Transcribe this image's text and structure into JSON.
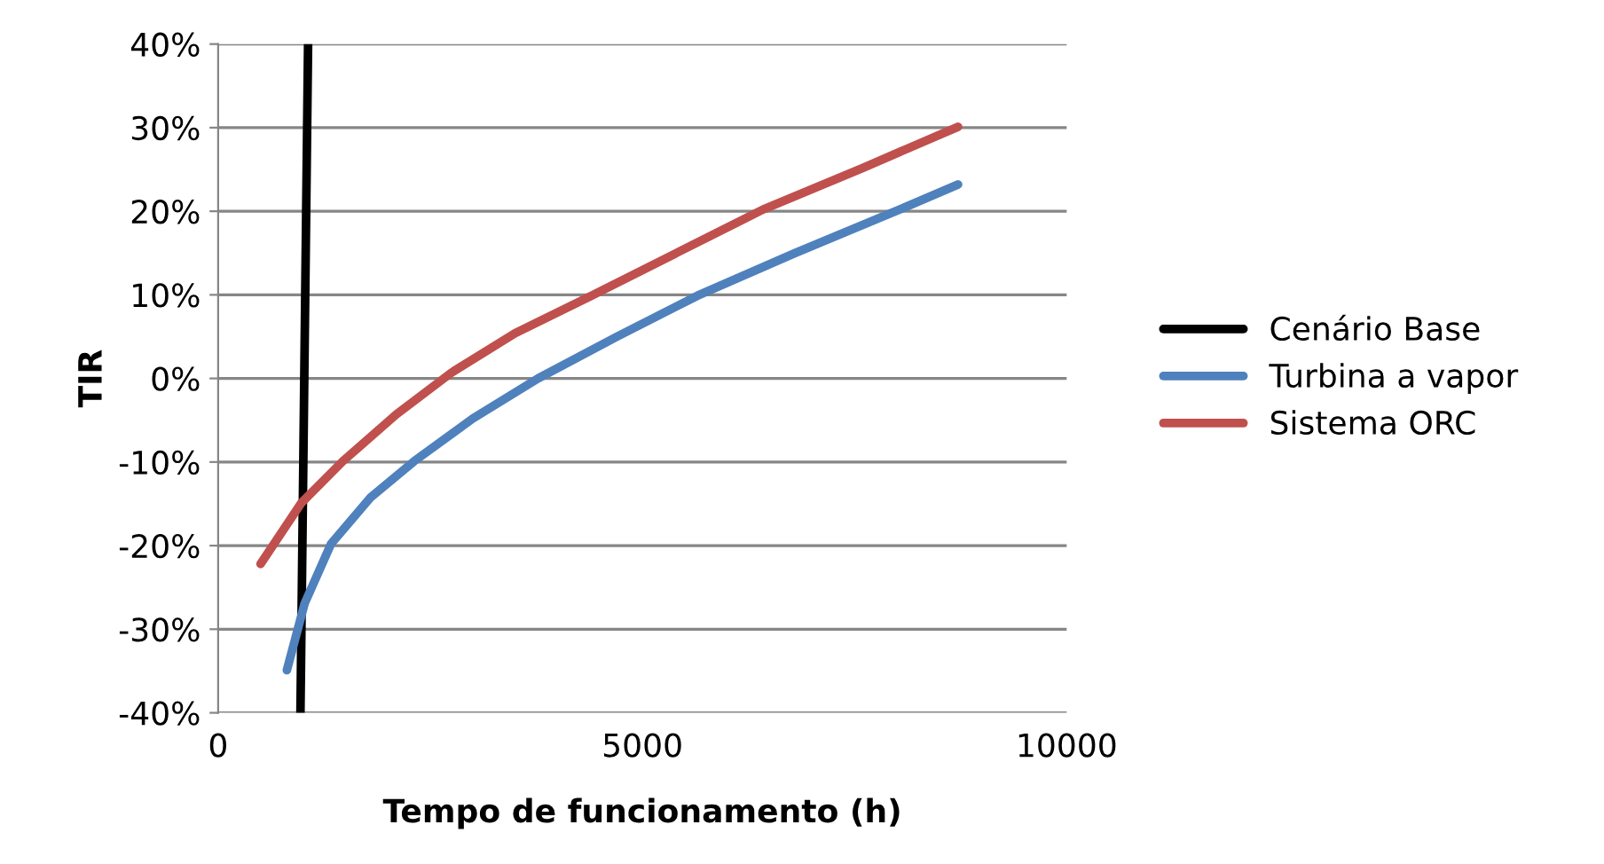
{
  "chart_data": {
    "type": "line",
    "xlabel": "Tempo de funcionamento (h)",
    "ylabel": "TIR",
    "xlim": [
      0,
      10000
    ],
    "xticks": [
      0,
      5000,
      10000
    ],
    "ylim": [
      -40,
      40
    ],
    "yticks": [
      {
        "value": -40,
        "label": "-40%"
      },
      {
        "value": -30,
        "label": "-30%"
      },
      {
        "value": -20,
        "label": "-20%"
      },
      {
        "value": -10,
        "label": "-10%"
      },
      {
        "value": 0,
        "label": "0%"
      },
      {
        "value": 10,
        "label": "10%"
      },
      {
        "value": 20,
        "label": "20%"
      },
      {
        "value": 30,
        "label": "30%"
      },
      {
        "value": 40,
        "label": "40%"
      }
    ],
    "grid": "y",
    "legend": "right",
    "marker": "none",
    "line_style": "solid",
    "series": [
      {
        "name": "Cenário Base",
        "color": "#000000",
        "x": [
          970,
          1060
        ],
        "values": [
          -40,
          40
        ]
      },
      {
        "name": "Turbina a vapor",
        "color": "#4f81bd",
        "x": [
          810,
          1020,
          1330,
          1800,
          2310,
          3000,
          3770,
          4700,
          5650,
          6800,
          8030,
          8720
        ],
        "values": [
          -34.9,
          -26.9,
          -19.8,
          -14.2,
          -9.9,
          -4.8,
          0.0,
          5.0,
          9.9,
          15.0,
          20.2,
          23.2
        ]
      },
      {
        "name": "Sistema ORC",
        "color": "#c0504d",
        "x": [
          500,
          980,
          1470,
          2100,
          2750,
          3500,
          4400,
          5400,
          6420,
          7600,
          8720
        ],
        "values": [
          -22.2,
          -14.9,
          -9.9,
          -4.3,
          0.7,
          5.4,
          9.9,
          15.0,
          20.2,
          25.2,
          30.1
        ]
      }
    ]
  }
}
